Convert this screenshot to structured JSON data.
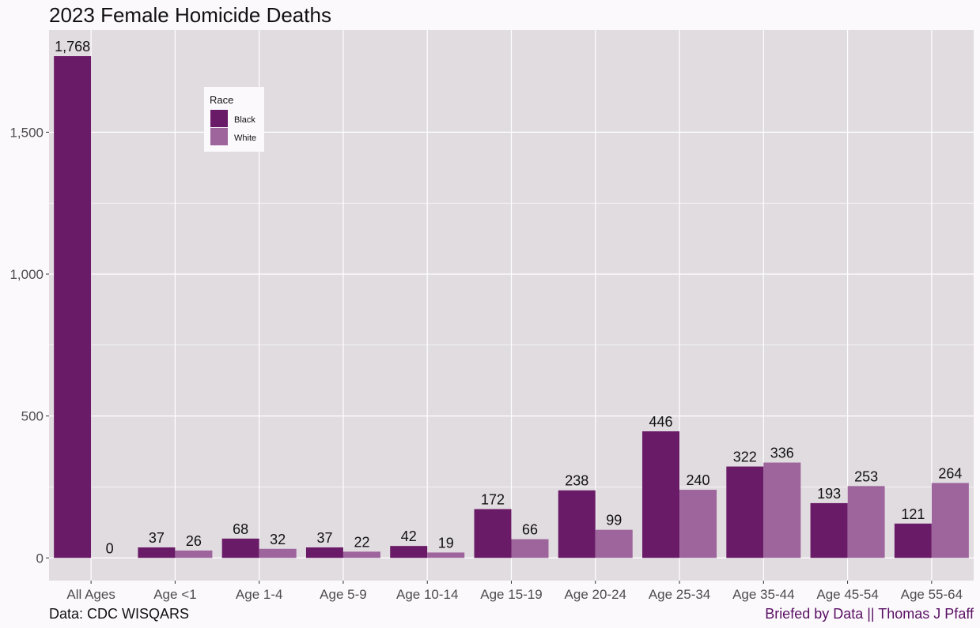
{
  "title": "2023 Female Homicide Deaths",
  "caption_left": "Data: CDC WISQARS",
  "caption_right": "Briefed by Data || Thomas J Pfaff",
  "legend": {
    "title": "Race",
    "items": [
      {
        "label": "Black",
        "color": "#6a1b68"
      },
      {
        "label": "White",
        "color": "#9e659c"
      }
    ]
  },
  "chart_data": {
    "type": "bar",
    "title": "2023 Female Homicide Deaths",
    "xlabel": "",
    "ylabel": "",
    "categories": [
      "All Ages",
      "Age <1",
      "Age 1-4",
      "Age 5-9",
      "Age 10-14",
      "Age 15-19",
      "Age 20-24",
      "Age 25-34",
      "Age 35-44",
      "Age 45-54",
      "Age 55-64"
    ],
    "series": [
      {
        "name": "Black",
        "color": "#6a1b68",
        "values": [
          1768,
          37,
          68,
          37,
          42,
          172,
          238,
          446,
          322,
          193,
          121
        ]
      },
      {
        "name": "White",
        "color": "#9e659c",
        "values": [
          0,
          26,
          32,
          22,
          19,
          66,
          99,
          240,
          336,
          253,
          264
        ]
      }
    ],
    "yticks": [
      0,
      500,
      1000,
      1500
    ],
    "ytick_labels": [
      "0",
      "500",
      "1,000",
      "1,500"
    ],
    "ylim": [
      -80,
      1860
    ],
    "grid": true,
    "legend_position": "top-left inside",
    "panel_color": "#e1dce0",
    "gridline_color": "#ffffff"
  }
}
